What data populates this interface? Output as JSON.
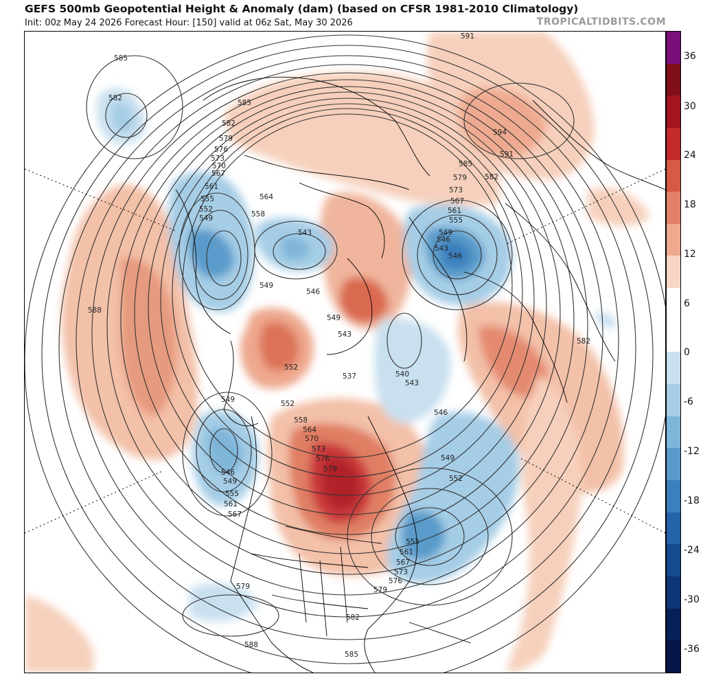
{
  "header": {
    "title": "GEFS 500mb Geopotential Height & Anomaly (dam) (based on CFSR 1981-2010 Climatology)",
    "subtitle": "Init: 00z May 24 2026   Forecast Hour: [150]   valid at 06z Sat, May 30 2026",
    "brand": "TROPICALTIDBITS.COM"
  },
  "colorbar": {
    "ticks": [
      "36",
      "30",
      "24",
      "18",
      "12",
      "6",
      "0",
      "-6",
      "-12",
      "-18",
      "-24",
      "-30",
      "-36"
    ],
    "colors": [
      "#7a0f7a",
      "#7f0f1a",
      "#a3141f",
      "#c22a2c",
      "#d65a45",
      "#e2806a",
      "#eea98e",
      "#f7d6c4",
      "#ffffff",
      "#ffffff",
      "#c9e0ef",
      "#a5cde6",
      "#7eb5d9",
      "#5a9bcb",
      "#3b7fbc",
      "#2563a8",
      "#154b8e",
      "#0d3676",
      "#08205a",
      "#061447"
    ]
  },
  "map": {
    "background": "#ffffff",
    "contour_color": "#333333",
    "contour_labels": [
      "591",
      "585",
      "582",
      "594",
      "591",
      "585",
      "582",
      "579",
      "573",
      "567",
      "561",
      "555",
      "549",
      "546",
      "543",
      "585",
      "582",
      "579",
      "576",
      "573",
      "570",
      "567",
      "561",
      "555",
      "552",
      "549",
      "564",
      "558",
      "543",
      "549",
      "546",
      "549",
      "543",
      "552",
      "537",
      "540",
      "543",
      "546",
      "549",
      "552",
      "582",
      "588",
      "549",
      "552",
      "558",
      "564",
      "570",
      "573",
      "576",
      "579",
      "546",
      "549",
      "555",
      "561",
      "567",
      "579",
      "579",
      "582",
      "588",
      "585",
      "555",
      "561",
      "567",
      "573",
      "576",
      "546"
    ]
  }
}
